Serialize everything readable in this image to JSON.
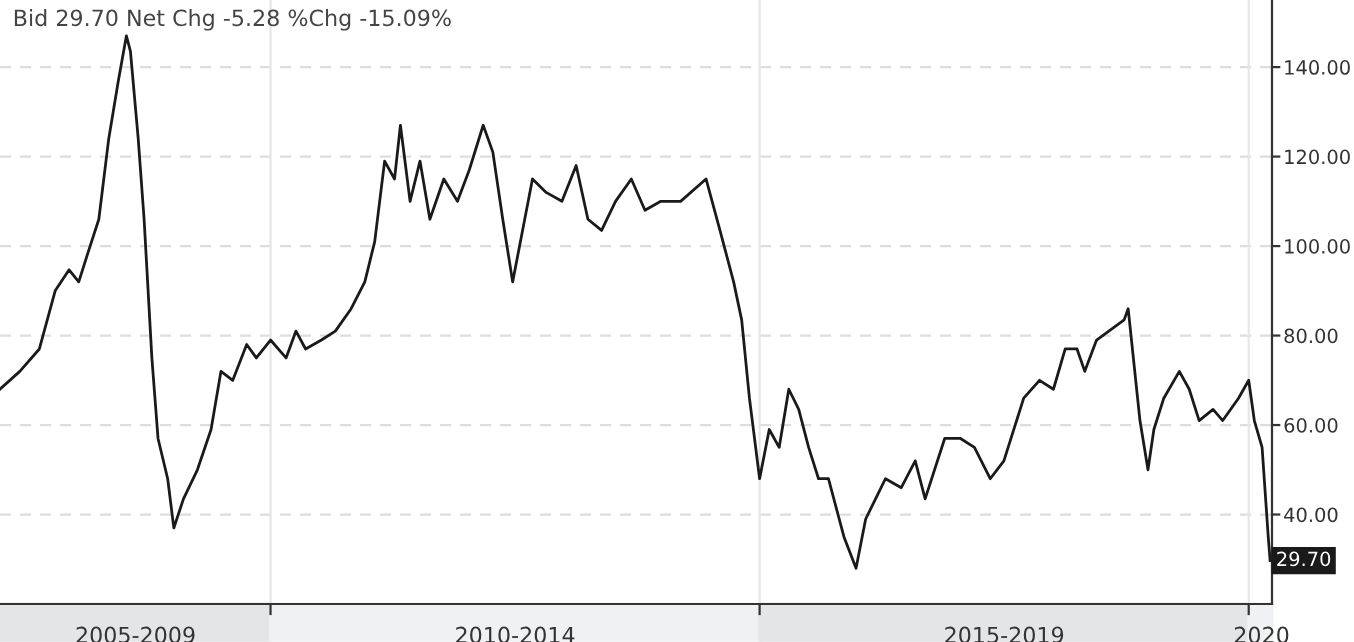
{
  "chart_data": {
    "type": "line",
    "title": "Bid 29.70 Net Chg -5.28 %Chg -15.09%",
    "x": [
      "2007-03-28",
      "2007-06-10",
      "2007-08-22",
      "2007-10-20",
      "2007-12-11",
      "2008-01-16",
      "2008-02-22",
      "2008-03-31",
      "2008-05-07",
      "2008-06-12",
      "2008-07-12",
      "2008-07-27",
      "2008-08-25",
      "2008-09-16",
      "2008-10-15",
      "2008-11-07",
      "2008-12-13",
      "2009-01-05",
      "2009-02-10",
      "2009-04-03",
      "2009-05-24",
      "2009-06-30",
      "2009-08-13",
      "2009-10-04",
      "2009-11-09",
      "2010-01-01",
      "2010-02-28",
      "2010-04-06",
      "2010-05-12",
      "2010-07-10",
      "2010-08-31",
      "2010-10-29",
      "2010-12-19",
      "2011-01-25",
      "2011-03-03",
      "2011-04-09",
      "2011-05-01",
      "2011-06-06",
      "2011-07-13",
      "2011-08-19",
      "2011-10-10",
      "2011-11-30",
      "2012-01-13",
      "2012-03-05",
      "2012-04-10",
      "2012-05-17",
      "2012-06-23",
      "2012-07-30",
      "2012-09-05",
      "2012-10-26",
      "2012-12-24",
      "2013-02-15",
      "2013-03-31",
      "2013-05-21",
      "2013-07-12",
      "2013-09-09",
      "2013-10-30",
      "2013-12-28",
      "2014-03-12",
      "2014-06-15",
      "2014-08-06",
      "2014-09-26",
      "2014-10-26",
      "2014-11-24",
      "2015-01-01",
      "2015-02-06",
      "2015-03-15",
      "2015-04-20",
      "2015-05-27",
      "2015-07-03",
      "2015-08-09",
      "2015-09-15",
      "2015-11-12",
      "2015-12-27",
      "2016-02-01",
      "2016-04-15",
      "2016-06-13",
      "2016-08-04",
      "2016-09-10",
      "2016-11-22",
      "2017-01-20",
      "2017-03-13",
      "2017-05-11",
      "2017-07-01",
      "2017-09-13",
      "2017-11-11",
      "2018-01-02",
      "2018-02-15",
      "2018-03-31",
      "2018-04-29",
      "2018-06-12",
      "2018-09-23",
      "2018-10-08",
      "2018-11-21",
      "2018-12-21",
      "2019-01-12",
      "2019-02-18",
      "2019-04-17",
      "2019-05-24",
      "2019-06-30",
      "2019-08-21",
      "2019-09-26",
      "2019-11-24",
      "2020-01-01",
      "2020-01-22",
      "2020-02-20",
      "2020-03-14",
      "2020-03-21"
    ],
    "series": [
      {
        "color": "#1a1a1a",
        "values": [
          68,
          72,
          77,
          90,
          94.7,
          92,
          99,
          106,
          124,
          137,
          147,
          143.5,
          124,
          106,
          75,
          57,
          48,
          37,
          43.5,
          50,
          59,
          72,
          70,
          78,
          75,
          79,
          75,
          81,
          77,
          79,
          81,
          86,
          92,
          101,
          119,
          115,
          127,
          110,
          119,
          106,
          115,
          110,
          117,
          127,
          121,
          106,
          92,
          103.5,
          115,
          112,
          110,
          118,
          106,
          103.5,
          110,
          115,
          108,
          110,
          110,
          115,
          103.5,
          92,
          83.5,
          66,
          48,
          59,
          55,
          68,
          63.5,
          55,
          48,
          48,
          35,
          28,
          39,
          48,
          46,
          52,
          43.5,
          57,
          57,
          55,
          48,
          52,
          66,
          70,
          68,
          77,
          77,
          72,
          79,
          83.5,
          86,
          61,
          50,
          59,
          66,
          72,
          68,
          61,
          63.5,
          61,
          66,
          70,
          61,
          55,
          35,
          29.7
        ]
      }
    ],
    "xlim": [
      "2007-03-28",
      "2020-03-28"
    ],
    "xticks": [
      {
        "value": "2008-08-15",
        "label": "2005-2009"
      },
      {
        "value": "2010-01-01",
        "label": null
      },
      {
        "value": "2012-07-02",
        "label": "2010-2014"
      },
      {
        "value": "2015-01-01",
        "label": null
      },
      {
        "value": "2017-07-02",
        "label": "2015-2019"
      },
      {
        "value": "2020-01-01",
        "label": null
      },
      {
        "value": "2020-02-18",
        "label": "2020"
      }
    ],
    "ylim": [
      20,
      155
    ],
    "yticks": [
      {
        "value": 40,
        "label": "40.00"
      },
      {
        "value": 60,
        "label": "60.00"
      },
      {
        "value": 80,
        "label": "80.00"
      },
      {
        "value": 100,
        "label": "100.00"
      },
      {
        "value": 120,
        "label": "120.00"
      },
      {
        "value": 140,
        "label": "140.00"
      }
    ],
    "annotations": [
      {
        "text": "29.70",
        "x": "2020-03-21",
        "y": 29.7
      }
    ],
    "grid": true,
    "line_style": "solid",
    "marker": "none"
  }
}
